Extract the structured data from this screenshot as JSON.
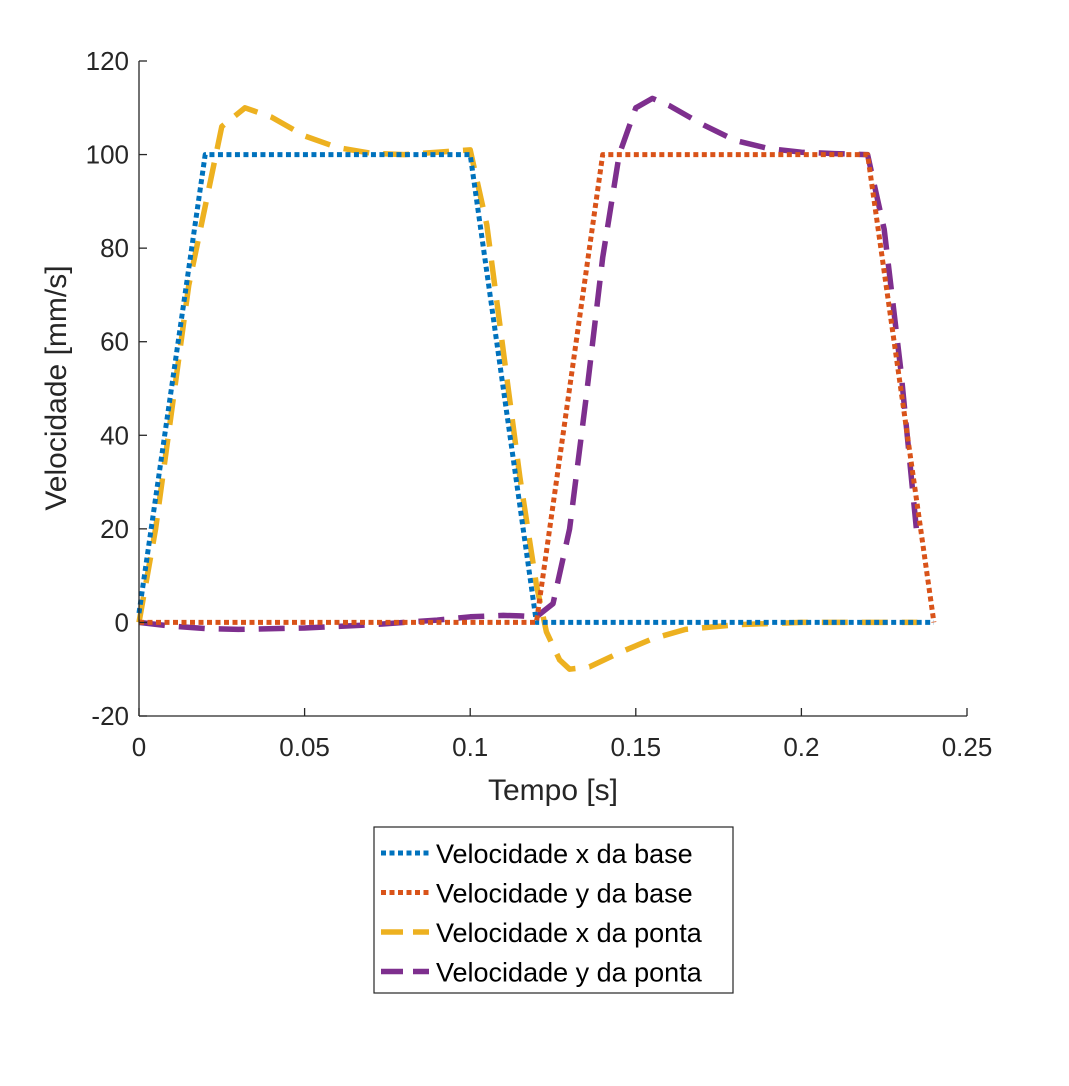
{
  "chart_data": {
    "type": "line",
    "xlabel": "Tempo [s]",
    "ylabel": "Velocidade [mm/s]",
    "xlim": [
      0,
      0.25
    ],
    "ylim": [
      -20,
      120
    ],
    "xticks": [
      0,
      0.05,
      0.1,
      0.15,
      0.2,
      0.25
    ],
    "xtick_labels": [
      "0",
      "0.05",
      "0.1",
      "0.15",
      "0.2",
      "0.25"
    ],
    "yticks": [
      -20,
      0,
      20,
      40,
      60,
      80,
      100,
      120
    ],
    "ytick_labels": [
      "-20",
      "0",
      "20",
      "40",
      "60",
      "80",
      "100",
      "120"
    ],
    "grid": false,
    "legend_position": "bottom-outside",
    "series": [
      {
        "name": "Velocidade x da base",
        "color": "#0072BD",
        "style": "dotted",
        "x": [
          0,
          0.02,
          0.1,
          0.12,
          0.24
        ],
        "y": [
          2,
          100,
          100,
          0,
          0
        ]
      },
      {
        "name": "Velocidade y da base",
        "color": "#D95319",
        "style": "dotted",
        "x": [
          0,
          0.12,
          0.14,
          0.22,
          0.24
        ],
        "y": [
          0,
          0,
          100,
          100,
          0
        ]
      },
      {
        "name": "Velocidade x da ponta",
        "color": "#EDB120",
        "style": "dashed",
        "x": [
          0,
          0.005,
          0.015,
          0.025,
          0.032,
          0.04,
          0.05,
          0.06,
          0.07,
          0.08,
          0.09,
          0.1,
          0.105,
          0.11,
          0.115,
          0.12,
          0.123,
          0.127,
          0.13,
          0.136,
          0.145,
          0.155,
          0.165,
          0.18,
          0.2,
          0.22,
          0.235
        ],
        "y": [
          0,
          20,
          72,
          106,
          110,
          108,
          104,
          101.5,
          100.3,
          100,
          100.5,
          101,
          85,
          58,
          31,
          8,
          -2,
          -8,
          -10,
          -9.5,
          -6.5,
          -3.5,
          -1.5,
          -0.5,
          0,
          0,
          0
        ]
      },
      {
        "name": "Velocidade y da ponta",
        "color": "#7E2F8E",
        "style": "dashed",
        "x": [
          0,
          0.01,
          0.02,
          0.03,
          0.05,
          0.07,
          0.09,
          0.1,
          0.11,
          0.115,
          0.12,
          0.125,
          0.13,
          0.135,
          0.14,
          0.145,
          0.15,
          0.155,
          0.16,
          0.17,
          0.18,
          0.19,
          0.2,
          0.21,
          0.22,
          0.225,
          0.23,
          0.235
        ],
        "y": [
          0,
          -0.8,
          -1.3,
          -1.5,
          -1.2,
          -0.5,
          0.5,
          1.2,
          1.5,
          1.4,
          1.2,
          4,
          20,
          48,
          78,
          100,
          110,
          112,
          110.5,
          106.5,
          103,
          101.3,
          100.5,
          100.2,
          100,
          84,
          54,
          18
        ]
      }
    ]
  }
}
